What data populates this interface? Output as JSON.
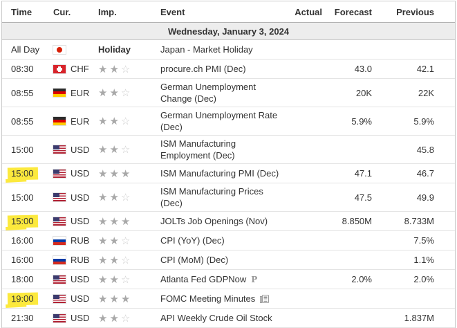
{
  "table": {
    "columns": [
      "Time",
      "Cur.",
      "Imp.",
      "Event",
      "Actual",
      "Forecast",
      "Previous"
    ],
    "date_header": "Wednesday, January 3, 2024",
    "rows": [
      {
        "time": "All Day",
        "currency": "",
        "flag": "japan",
        "importance": {
          "type": "holiday",
          "label": "Holiday"
        },
        "event": "Japan - Market Holiday",
        "actual": "",
        "forecast": "",
        "previous": "",
        "highlighted": false,
        "suffix_icon": ""
      },
      {
        "time": "08:30",
        "currency": "CHF",
        "flag": "switzerland",
        "importance": {
          "type": "stars",
          "filled": 2,
          "total": 3
        },
        "event": "procure.ch PMI (Dec)",
        "actual": "",
        "forecast": "43.0",
        "previous": "42.1",
        "highlighted": false,
        "suffix_icon": ""
      },
      {
        "time": "08:55",
        "currency": "EUR",
        "flag": "germany",
        "importance": {
          "type": "stars",
          "filled": 2,
          "total": 3
        },
        "event": "German Unemployment Change (Dec)",
        "actual": "",
        "forecast": "20K",
        "previous": "22K",
        "highlighted": false,
        "suffix_icon": ""
      },
      {
        "time": "08:55",
        "currency": "EUR",
        "flag": "germany",
        "importance": {
          "type": "stars",
          "filled": 2,
          "total": 3
        },
        "event": "German Unemployment Rate (Dec)",
        "actual": "",
        "forecast": "5.9%",
        "previous": "5.9%",
        "highlighted": false,
        "suffix_icon": ""
      },
      {
        "time": "15:00",
        "currency": "USD",
        "flag": "us",
        "importance": {
          "type": "stars",
          "filled": 2,
          "total": 3
        },
        "event": "ISM Manufacturing Employment (Dec)",
        "actual": "",
        "forecast": "",
        "previous": "45.8",
        "highlighted": false,
        "suffix_icon": ""
      },
      {
        "time": "15:00",
        "currency": "USD",
        "flag": "us",
        "importance": {
          "type": "stars",
          "filled": 3,
          "total": 3
        },
        "event": "ISM Manufacturing PMI (Dec)",
        "actual": "",
        "forecast": "47.1",
        "previous": "46.7",
        "highlighted": true,
        "suffix_icon": ""
      },
      {
        "time": "15:00",
        "currency": "USD",
        "flag": "us",
        "importance": {
          "type": "stars",
          "filled": 2,
          "total": 3
        },
        "event": "ISM Manufacturing Prices (Dec)",
        "actual": "",
        "forecast": "47.5",
        "previous": "49.9",
        "highlighted": false,
        "suffix_icon": ""
      },
      {
        "time": "15:00",
        "currency": "USD",
        "flag": "us",
        "importance": {
          "type": "stars",
          "filled": 3,
          "total": 3
        },
        "event": "JOLTs Job Openings (Nov)",
        "actual": "",
        "forecast": "8.850M",
        "previous": "8.733M",
        "highlighted": true,
        "suffix_icon": ""
      },
      {
        "time": "16:00",
        "currency": "RUB",
        "flag": "russia",
        "importance": {
          "type": "stars",
          "filled": 2,
          "total": 3
        },
        "event": "CPI (YoY) (Dec)",
        "actual": "",
        "forecast": "",
        "previous": "7.5%",
        "highlighted": false,
        "suffix_icon": ""
      },
      {
        "time": "16:00",
        "currency": "RUB",
        "flag": "russia",
        "importance": {
          "type": "stars",
          "filled": 2,
          "total": 3
        },
        "event": "CPI (MoM) (Dec)",
        "actual": "",
        "forecast": "",
        "previous": "1.1%",
        "highlighted": false,
        "suffix_icon": ""
      },
      {
        "time": "18:00",
        "currency": "USD",
        "flag": "us",
        "importance": {
          "type": "stars",
          "filled": 2,
          "total": 3
        },
        "event": "Atlanta Fed GDPNow",
        "actual": "",
        "forecast": "2.0%",
        "previous": "2.0%",
        "highlighted": false,
        "suffix_icon": "preliminary"
      },
      {
        "time": "19:00",
        "currency": "USD",
        "flag": "us",
        "importance": {
          "type": "stars",
          "filled": 3,
          "total": 3
        },
        "event": "FOMC Meeting Minutes",
        "actual": "",
        "forecast": "",
        "previous": "",
        "highlighted": true,
        "suffix_icon": "report"
      },
      {
        "time": "21:30",
        "currency": "USD",
        "flag": "us",
        "importance": {
          "type": "stars",
          "filled": 2,
          "total": 3
        },
        "event": "API Weekly Crude Oil Stock",
        "actual": "",
        "forecast": "",
        "previous": "1.837M",
        "highlighted": false,
        "suffix_icon": ""
      }
    ]
  },
  "icons": {
    "star_filled": "★",
    "star_empty": "☆",
    "preliminary": "P"
  },
  "colors": {
    "highlight_yellow": "#fce93d",
    "date_row_bg": "#ededed",
    "star_filled": "#a8a8a8",
    "star_empty": "#cdcdcd",
    "text": "#333333",
    "row_border": "#e4e4e4",
    "japan_red": "#d81e05",
    "swiss_red": "#d8232a",
    "us_blue": "#3c3b6e",
    "us_red": "#b22234",
    "russia_blue": "#0039a6",
    "russia_red": "#d52b1e",
    "germany_red": "#dd0000",
    "germany_gold": "#ffce00"
  }
}
